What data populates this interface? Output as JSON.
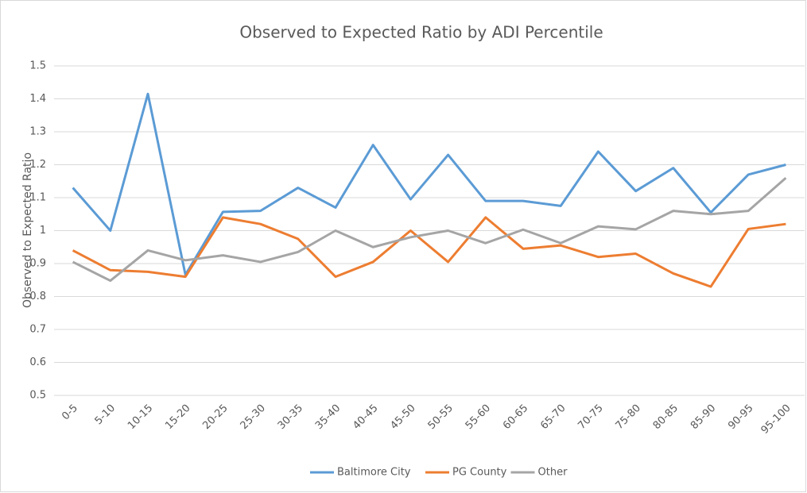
{
  "chart_data": {
    "type": "line",
    "title": "Observed to Expected Ratio by ADI Percentile",
    "y_label": "Observed to Expected Ratio",
    "categories": [
      "0-5",
      "5-10",
      "10-15",
      "15-20",
      "20-25",
      "25-30",
      "30-35",
      "35-40",
      "40-45",
      "45-50",
      "50-55",
      "55-60",
      "60-65",
      "65-70",
      "70-75",
      "75-80",
      "80-85",
      "85-90",
      "90-95",
      "95-100"
    ],
    "series": [
      {
        "name": "Baltimore City",
        "color": "#5b9bd5",
        "values": [
          1.13,
          1.0,
          1.415,
          0.866,
          1.057,
          1.06,
          1.13,
          1.07,
          1.26,
          1.095,
          1.23,
          1.09,
          1.09,
          1.075,
          1.24,
          1.12,
          1.19,
          1.055,
          1.17,
          1.2
        ]
      },
      {
        "name": "PG County",
        "color": "#ed7d31",
        "values": [
          0.94,
          0.88,
          0.875,
          0.86,
          1.04,
          1.02,
          0.975,
          0.86,
          0.905,
          1.0,
          0.905,
          1.04,
          0.945,
          0.955,
          0.92,
          0.93,
          0.87,
          0.83,
          1.005,
          1.02
        ]
      },
      {
        "name": "Other",
        "color": "#a5a5a5",
        "values": [
          0.905,
          0.848,
          0.94,
          0.91,
          0.925,
          0.905,
          0.935,
          1.0,
          0.95,
          0.98,
          1.0,
          0.962,
          1.003,
          0.962,
          1.013,
          1.004,
          1.06,
          1.05,
          1.06,
          1.16
        ]
      }
    ],
    "ylim": [
      0.5,
      1.5
    ],
    "yticks": [
      0.5,
      0.6,
      0.7,
      0.8,
      0.9,
      1,
      1.1,
      1.2,
      1.3,
      1.4,
      1.5
    ],
    "grid": true,
    "legend": "bottom"
  }
}
